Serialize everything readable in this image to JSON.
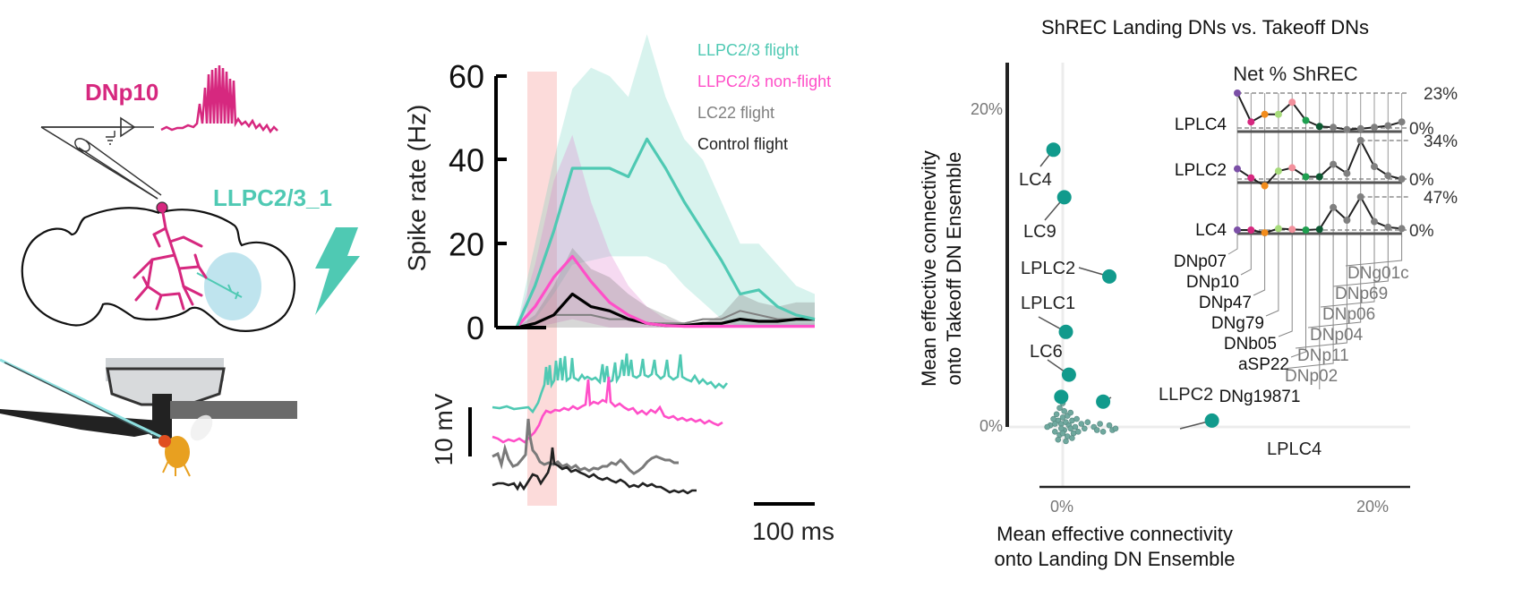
{
  "schematic": {
    "recorded_neuron": "DNp10",
    "stimulated_neuron": "LLPC2/3_1",
    "colors": {
      "dnp10": "#d6287f",
      "llpc": "#4fc9b3",
      "lobula": "#a9dbe8",
      "fly": "#e8a020"
    },
    "icons": [
      "amplifier-icon",
      "ground-icon",
      "electrode-icon",
      "brain-outline-icon",
      "lightning-bolt-icon",
      "fly-tether-rig-icon"
    ]
  },
  "chart_data": [
    {
      "type": "line",
      "title": "",
      "xlabel": "",
      "ylabel": "Spike rate (Hz)",
      "ylim": [
        0,
        60
      ],
      "yticks": [
        "0",
        "20",
        "40",
        "60"
      ],
      "x": [
        0,
        1,
        2,
        3,
        4,
        5,
        6,
        7,
        8,
        9,
        10,
        11,
        12,
        13,
        14,
        15,
        16,
        17
      ],
      "stimulus_window": [
        1.0,
        1.8
      ],
      "legend": {
        "placement": "top-right",
        "entries": [
          "LLPC2/3 flight",
          "LLPC2/3 non-flight",
          "LC22 flight",
          "Control flight"
        ]
      },
      "series": [
        {
          "name": "LLPC2/3 flight",
          "color": "#4fc9b3",
          "values": [
            0,
            0,
            10,
            23,
            38,
            38,
            38,
            36,
            45,
            38,
            30,
            23,
            16,
            8,
            9,
            5,
            3,
            2
          ],
          "upper": [
            0,
            0,
            20,
            40,
            57,
            62,
            60,
            55,
            70,
            55,
            45,
            40,
            30,
            20,
            20,
            15,
            10,
            8
          ],
          "lower": [
            0,
            0,
            2,
            8,
            15,
            16,
            17,
            17,
            17,
            15,
            10,
            6,
            2,
            0,
            0,
            0,
            0,
            0
          ]
        },
        {
          "name": "LLPC2/3 non-flight",
          "color": "#ff4fc8",
          "values": [
            0,
            0,
            5,
            12,
            17,
            11,
            6,
            3,
            1,
            0.5,
            0.3,
            0.3,
            0.3,
            0.3,
            0.3,
            0.3,
            0.3,
            0.3
          ],
          "upper": [
            0,
            0,
            15,
            35,
            46,
            30,
            18,
            10,
            5,
            2,
            1,
            1,
            1,
            1,
            1,
            1,
            1,
            1
          ],
          "lower": [
            0,
            0,
            0,
            1,
            2,
            1,
            0,
            0,
            0,
            0,
            0,
            0,
            0,
            0,
            0,
            0,
            0,
            0
          ]
        },
        {
          "name": "LC22 flight",
          "color": "#808080",
          "values": [
            0,
            0,
            1,
            3,
            3,
            3,
            2,
            2,
            1,
            1,
            1,
            2,
            2,
            4,
            3,
            2,
            2,
            2
          ],
          "upper": [
            0,
            0,
            3,
            10,
            19,
            14,
            12,
            8,
            5,
            3,
            1,
            1,
            3,
            8,
            6,
            5,
            6,
            6
          ],
          "lower": [
            0,
            0,
            0,
            0,
            0,
            0,
            0,
            0,
            0,
            0,
            0,
            0,
            0,
            0,
            0,
            0,
            0,
            0
          ]
        },
        {
          "name": "Control flight",
          "color": "#000000",
          "values": [
            0,
            0,
            1,
            3,
            8,
            5,
            4,
            2,
            1,
            0.5,
            0.5,
            1,
            1,
            2,
            1.5,
            1.5,
            2,
            2
          ]
        }
      ]
    },
    {
      "type": "line",
      "title": "",
      "description": "Example membrane potential traces",
      "scale_bars": {
        "voltage": "10 mV",
        "time": "100 ms"
      },
      "series": [
        {
          "name": "LLPC2/3 flight trace",
          "color": "#4fc9b3"
        },
        {
          "name": "LLPC2/3 non-flight trace",
          "color": "#ff4fc8"
        },
        {
          "name": "LC22 flight trace",
          "color": "#777777"
        },
        {
          "name": "Control flight trace",
          "color": "#222222"
        }
      ]
    },
    {
      "type": "scatter",
      "title": "ShREC Landing DNs vs. Takeoff DNs",
      "xlabel": "Mean effective connectivity onto Landing DN Ensemble",
      "ylabel": "Mean effective connectivity onto Takeoff DN Ensemble",
      "xlim": [
        -1,
        21
      ],
      "ylim": [
        -4,
        21
      ],
      "xticks": [
        "0%",
        "20%"
      ],
      "yticks": [
        "0%",
        "20%"
      ],
      "point_color": "#119a8c",
      "labeled_points": [
        {
          "label": "LC4",
          "x": -0.6,
          "y": 17.5
        },
        {
          "label": "LC9",
          "x": 0.1,
          "y": 14.5
        },
        {
          "label": "LPLC2",
          "x": 3.0,
          "y": 9.5
        },
        {
          "label": "LPLC1",
          "x": 0.2,
          "y": 6.0
        },
        {
          "label": "LC6",
          "x": 0.4,
          "y": 3.3
        },
        {
          "label": "",
          "x": -0.1,
          "y": 1.9
        },
        {
          "label": "LLPC2",
          "x": 2.6,
          "y": 1.6
        },
        {
          "label": "LPLC4",
          "x": 9.6,
          "y": 0.4
        }
      ],
      "small_points": [
        [
          -0.8,
          0.1
        ],
        [
          -0.5,
          -0.3
        ],
        [
          -0.3,
          0.4
        ],
        [
          -0.2,
          -0.5
        ],
        [
          -0.1,
          0.2
        ],
        [
          0.0,
          0.6
        ],
        [
          0.1,
          -0.2
        ],
        [
          0.2,
          0.3
        ],
        [
          0.3,
          -0.6
        ],
        [
          0.4,
          0.1
        ],
        [
          0.5,
          -0.1
        ],
        [
          0.6,
          0.4
        ],
        [
          0.7,
          -0.4
        ],
        [
          0.8,
          0.0
        ],
        [
          -0.4,
          0.8
        ],
        [
          -0.2,
          1.2
        ],
        [
          0.0,
          1.5
        ],
        [
          0.1,
          1.0
        ],
        [
          -0.3,
          -0.8
        ],
        [
          0.2,
          -0.9
        ],
        [
          1.2,
          0.2
        ],
        [
          1.4,
          -0.1
        ],
        [
          1.6,
          0.3
        ],
        [
          2.0,
          0.0
        ],
        [
          2.2,
          -0.2
        ],
        [
          2.4,
          0.2
        ],
        [
          2.6,
          -0.3
        ],
        [
          3.0,
          0.1
        ],
        [
          3.2,
          -0.2
        ],
        [
          3.4,
          -0.1
        ],
        [
          -1.0,
          0.0
        ],
        [
          -0.6,
          0.5
        ],
        [
          0.9,
          0.5
        ],
        [
          1.0,
          -0.3
        ],
        [
          -0.1,
          -0.1
        ],
        [
          0.3,
          0.7
        ],
        [
          0.5,
          0.9
        ],
        [
          -0.5,
          0.2
        ],
        [
          0.0,
          -0.4
        ],
        [
          0.6,
          -0.7
        ]
      ]
    },
    {
      "type": "line",
      "title": "Net % ShREC",
      "categories": [
        "DNp07",
        "DNp10",
        "DNp47",
        "DNg79",
        "DNb05",
        "aSP22",
        "DNg19871",
        "DNp02",
        "DNp11",
        "DNp04",
        "DNp06",
        "DNp69",
        "DNg01c"
      ],
      "category_colors": [
        "#7b4fa6",
        "#d6287f",
        "#f28c1c",
        "#a6db7a",
        "#f2909c",
        "#1fa050",
        "#0d5a33",
        "#808080",
        "#808080",
        "#808080",
        "#808080",
        "#808080",
        "#808080"
      ],
      "label_colors": {
        "landing": "#111111",
        "takeoff": "#777777"
      },
      "series": [
        {
          "name": "LPLC4",
          "max_label": "23%",
          "zero_label": "0%",
          "max": 23,
          "values": [
            23,
            4,
            9,
            9,
            17,
            5,
            1,
            0.5,
            -1,
            -0.5,
            0.5,
            1.5,
            4
          ]
        },
        {
          "name": "LPLC2",
          "max_label": "34%",
          "zero_label": "0%",
          "max": 34,
          "values": [
            9,
            1,
            -6,
            7,
            10,
            2,
            2,
            13,
            5,
            34,
            11,
            3,
            0
          ]
        },
        {
          "name": "LC4",
          "max_label": "47%",
          "zero_label": "0%",
          "max": 47,
          "values": [
            0,
            0,
            -4,
            2,
            1,
            0,
            1,
            32,
            14,
            47,
            12,
            4,
            2
          ]
        }
      ]
    }
  ]
}
